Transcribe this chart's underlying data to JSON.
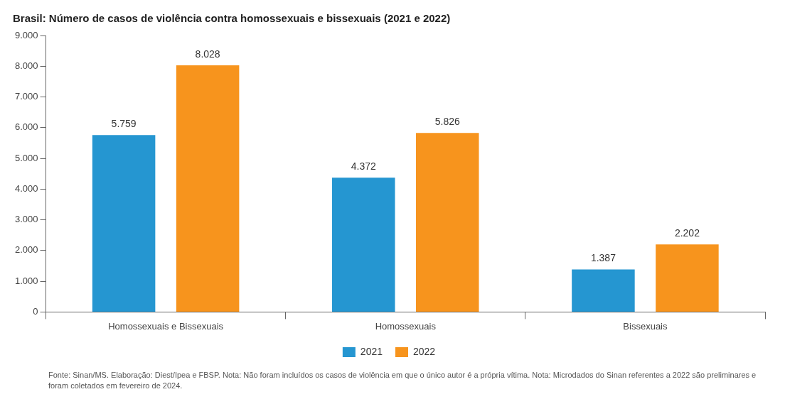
{
  "chart_data": {
    "type": "bar",
    "title": "Brasil: Número de casos de violência contra homossexuais e bissexuais (2021 e 2022)",
    "categories": [
      "Homossexuais e Bissexuais",
      "Homossexuais",
      "Bissexuais"
    ],
    "series": [
      {
        "name": "2021",
        "color": "#2596d1",
        "values": [
          5759,
          4372,
          1387
        ],
        "value_labels": [
          "5.759",
          "4.372",
          "1.387"
        ]
      },
      {
        "name": "2022",
        "color": "#f7941d",
        "values": [
          8028,
          5826,
          2202
        ],
        "value_labels": [
          "8.028",
          "5.826",
          "2.202"
        ]
      }
    ],
    "ylim": [
      0,
      9000
    ],
    "yticks": [
      {
        "value": 0,
        "label": "0"
      },
      {
        "value": 1000,
        "label": "1.000"
      },
      {
        "value": 2000,
        "label": "2.000"
      },
      {
        "value": 3000,
        "label": "3.000"
      },
      {
        "value": 4000,
        "label": "4.000"
      },
      {
        "value": 5000,
        "label": "5.000"
      },
      {
        "value": 6000,
        "label": "6.000"
      },
      {
        "value": 7000,
        "label": "7.000"
      },
      {
        "value": 8000,
        "label": "8.000"
      },
      {
        "value": 9000,
        "label": "9.000"
      }
    ],
    "grid": false,
    "legend": "bottom",
    "annotations": [
      "Fonte: Sinan/MS. Elaboração: Diest/Ipea e FBSP. Nota: Não foram incluídos os casos de violência em que o único autor é a própria vítima. Nota: Microdados do Sinan referentes a 2022 são preliminares e foram coletados em fevereiro de 2024."
    ]
  }
}
